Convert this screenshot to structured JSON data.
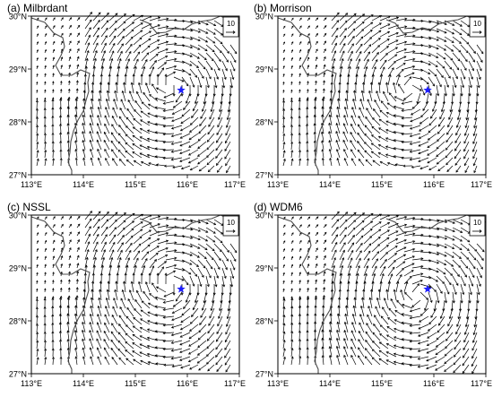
{
  "figure": {
    "panels": [
      {
        "title": "(a) Milbrdant"
      },
      {
        "title": "(b) Morrison"
      },
      {
        "title": "(c) NSSL"
      },
      {
        "title": "(d) WDM6"
      }
    ],
    "lat_ticks": [
      "30°N",
      "29°N",
      "28°N",
      "27°N"
    ],
    "lon_ticks": [
      "113°E",
      "114°E",
      "115°E",
      "116°E",
      "117°E"
    ],
    "reference_vector": {
      "value": "10"
    },
    "marker": {
      "shape": "star",
      "color": "#1f1fff",
      "lon": 115.88,
      "lat": 28.6
    },
    "extent": {
      "lon": [
        113,
        117
      ],
      "lat": [
        27,
        30
      ]
    },
    "colors": {
      "vectors": "#000000",
      "coastline": "#4d4d4d",
      "marker": "#1f1fff"
    }
  }
}
